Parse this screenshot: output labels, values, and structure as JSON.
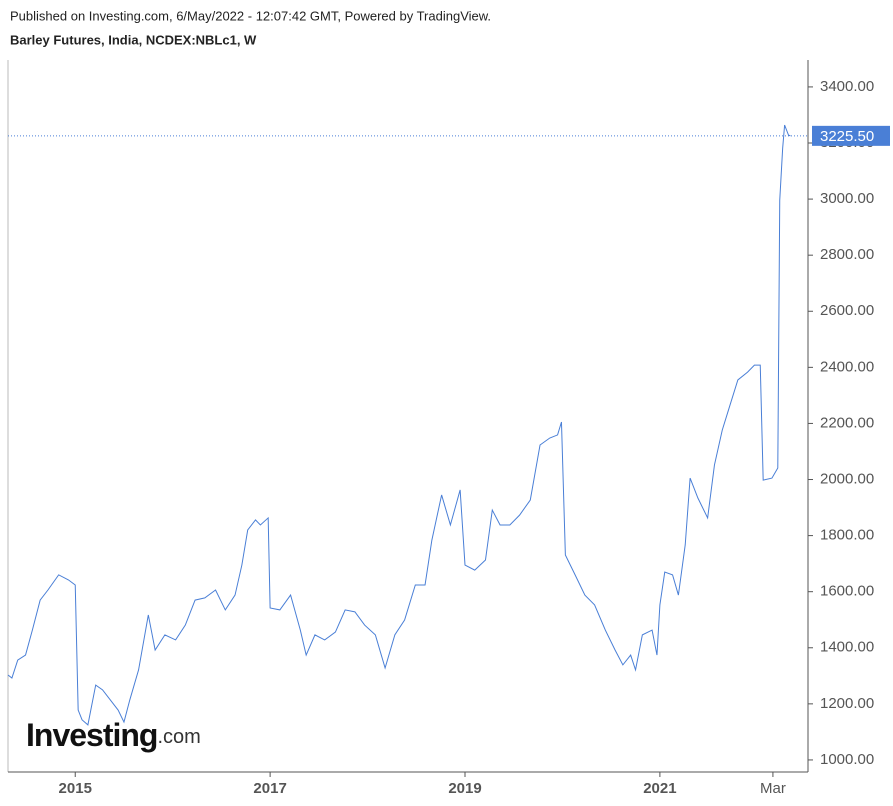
{
  "chart_data": {
    "type": "line",
    "published": "Published on Investing.com, 6/May/2022 - 12:07:42 GMT, Powered by TradingView.",
    "title": "Barley Futures, India, NCDEX:NBLc1, W",
    "logo": {
      "brand": "Investing",
      "suffix": ".com"
    },
    "color": "#4a7fd6",
    "grid": false,
    "x": [
      2014.31,
      2014.35,
      2014.41,
      2014.49,
      2014.56,
      2014.64,
      2014.72,
      2014.83,
      2014.93,
      2015.0,
      2015.03,
      2015.07,
      2015.13,
      2015.21,
      2015.28,
      2015.36,
      2015.44,
      2015.5,
      2015.56,
      2015.65,
      2015.75,
      2015.82,
      2015.92,
      2016.03,
      2016.13,
      2016.23,
      2016.33,
      2016.44,
      2016.54,
      2016.64,
      2016.71,
      2016.77,
      2016.85,
      2016.9,
      2016.98,
      2017.0,
      2017.1,
      2017.21,
      2017.31,
      2017.37,
      2017.46,
      2017.56,
      2017.67,
      2017.77,
      2017.87,
      2017.97,
      2018.08,
      2018.18,
      2018.28,
      2018.38,
      2018.49,
      2018.59,
      2018.66,
      2018.76,
      2018.85,
      2018.95,
      2019.0,
      2019.1,
      2019.21,
      2019.28,
      2019.36,
      2019.46,
      2019.56,
      2019.67,
      2019.77,
      2019.87,
      2019.95,
      2019.99,
      2020.03,
      2020.13,
      2020.23,
      2020.33,
      2020.44,
      2020.54,
      2020.62,
      2020.7,
      2020.75,
      2020.82,
      2020.92,
      2020.97,
      2021.0,
      2021.05,
      2021.13,
      2021.19,
      2021.26,
      2021.31,
      2021.39,
      2021.49,
      2021.56,
      2021.64,
      2021.72,
      2021.8,
      2021.9,
      2021.97,
      2022.03,
      2022.06,
      2022.15,
      2022.21,
      2022.23,
      2022.26,
      2022.28,
      2022.32,
      2022.34
    ],
    "values": [
      1303,
      1292,
      1356,
      1374,
      1463,
      1570,
      1606,
      1660,
      1642,
      1624,
      1178,
      1143,
      1125,
      1267,
      1250,
      1214,
      1178,
      1135,
      1214,
      1321,
      1517,
      1392,
      1446,
      1428,
      1481,
      1570,
      1578,
      1606,
      1535,
      1588,
      1695,
      1820,
      1856,
      1838,
      1863,
      1542,
      1535,
      1588,
      1463,
      1374,
      1446,
      1428,
      1456,
      1535,
      1528,
      1481,
      1446,
      1328,
      1446,
      1499,
      1624,
      1624,
      1784,
      1945,
      1838,
      1963,
      1695,
      1677,
      1713,
      1891,
      1838,
      1838,
      1873,
      1927,
      2123,
      2148,
      2159,
      2205,
      1731,
      1660,
      1588,
      1553,
      1463,
      1392,
      1339,
      1374,
      1321,
      1446,
      1463,
      1374,
      1553,
      1670,
      1660,
      1588,
      1767,
      2005,
      1934,
      1863,
      2052,
      2176,
      2266,
      2355,
      2383,
      2408,
      2408,
      1998,
      2005,
      2041,
      2996,
      3182,
      3264,
      3228,
      3225.5
    ],
    "last_price": {
      "value": 3225.5,
      "label": "3225.50"
    },
    "xlim": [
      2014.31,
      2022.52
    ],
    "xticks": [
      2015,
      2017,
      2019,
      2021,
      {
        "value": 2022.16,
        "label": "Mar"
      }
    ],
    "ylim": [
      957,
      3496
    ],
    "yticks": [
      {
        "value": 1000,
        "label": "1000.00"
      },
      {
        "value": 1200,
        "label": "1200.00"
      },
      {
        "value": 1400,
        "label": "1400.00"
      },
      {
        "value": 1600,
        "label": "1600.00"
      },
      {
        "value": 1800,
        "label": "1800.00"
      },
      {
        "value": 2000,
        "label": "2000.00"
      },
      {
        "value": 2200,
        "label": "2200.00"
      },
      {
        "value": 2400,
        "label": "2400.00"
      },
      {
        "value": 2600,
        "label": "2600.00"
      },
      {
        "value": 2800,
        "label": "2800.00"
      },
      {
        "value": 3000,
        "label": "3000.00"
      },
      {
        "value": 3200,
        "label": "3200.00"
      },
      {
        "value": 3400,
        "label": "3400.00"
      }
    ]
  }
}
